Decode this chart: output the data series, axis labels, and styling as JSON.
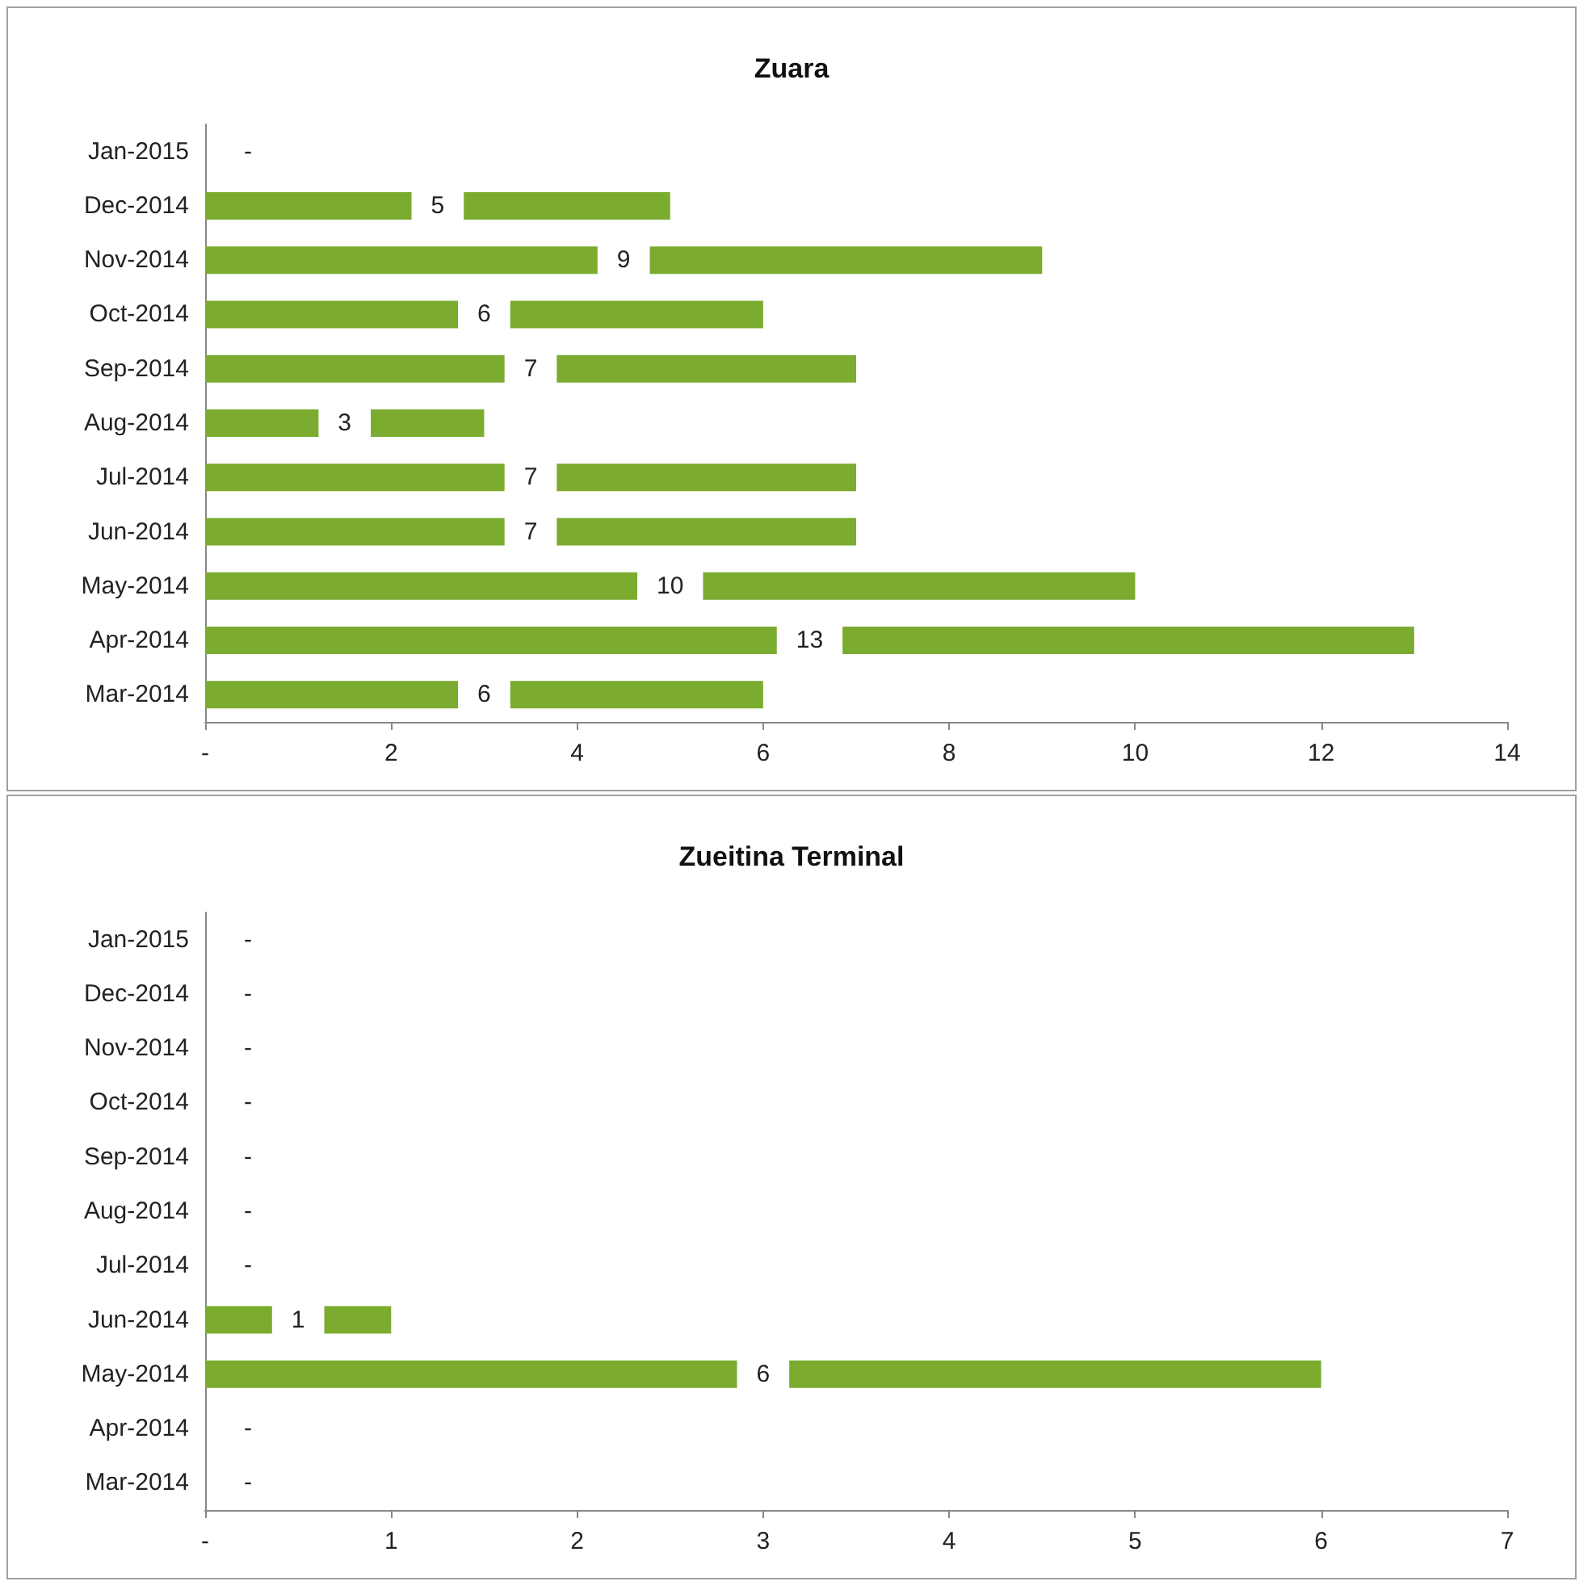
{
  "chart_data": [
    {
      "type": "bar",
      "orientation": "horizontal",
      "title": "Zuara",
      "categories": [
        "Jan-2015",
        "Dec-2014",
        "Nov-2014",
        "Oct-2014",
        "Sep-2014",
        "Aug-2014",
        "Jul-2014",
        "Jun-2014",
        "May-2014",
        "Apr-2014",
        "Mar-2014"
      ],
      "values": [
        0,
        5,
        9,
        6,
        7,
        3,
        7,
        7,
        10,
        13,
        6
      ],
      "value_labels": [
        "-",
        "5",
        "9",
        "6",
        "7",
        "3",
        "7",
        "7",
        "10",
        "13",
        "6"
      ],
      "color": "#7bab2f",
      "xlim": [
        0,
        14
      ],
      "xticks": [
        {
          "value": 0,
          "label": "-"
        },
        2,
        4,
        6,
        8,
        10,
        12,
        14
      ]
    },
    {
      "type": "bar",
      "orientation": "horizontal",
      "title": "Zueitina Terminal",
      "categories": [
        "Jan-2015",
        "Dec-2014",
        "Nov-2014",
        "Oct-2014",
        "Sep-2014",
        "Aug-2014",
        "Jul-2014",
        "Jun-2014",
        "May-2014",
        "Apr-2014",
        "Mar-2014"
      ],
      "values": [
        0,
        0,
        0,
        0,
        0,
        0,
        0,
        1,
        6,
        0,
        0
      ],
      "value_labels": [
        "-",
        "-",
        "-",
        "-",
        "-",
        "-",
        "-",
        "1",
        "6",
        "-",
        "-"
      ],
      "color": "#7bab2f",
      "xlim": [
        0,
        7
      ],
      "xticks": [
        {
          "value": 0,
          "label": "-"
        },
        1,
        2,
        3,
        4,
        5,
        6,
        7
      ]
    }
  ]
}
